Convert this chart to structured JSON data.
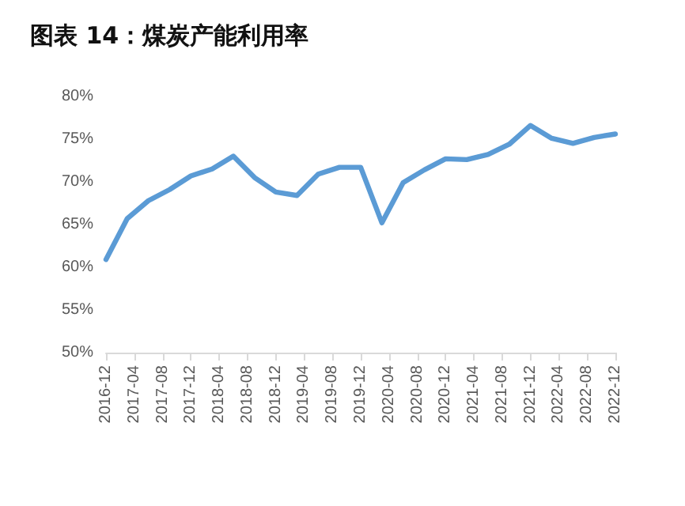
{
  "chart_data": {
    "type": "line",
    "title": "图表 14：煤炭产能利用率",
    "x": [
      "2016-12",
      "2017-03",
      "2017-06",
      "2017-09",
      "2017-12",
      "2018-03",
      "2018-06",
      "2018-09",
      "2018-12",
      "2019-03",
      "2019-06",
      "2019-09",
      "2019-12",
      "2020-03",
      "2020-06",
      "2020-09",
      "2020-12",
      "2021-03",
      "2021-06",
      "2021-09",
      "2021-12",
      "2022-03",
      "2022-06",
      "2022-09",
      "2022-12"
    ],
    "series": [
      {
        "color": "#5b9bd5",
        "values": [
          60.9,
          65.7,
          67.8,
          69.1,
          70.7,
          71.5,
          73.0,
          70.5,
          68.8,
          68.4,
          70.9,
          71.7,
          71.7,
          65.2,
          69.9,
          71.4,
          72.7,
          72.6,
          73.2,
          74.4,
          76.6,
          75.1,
          74.5,
          75.2,
          75.6
        ]
      }
    ],
    "xlim": [
      "2016-12",
      "2022-12"
    ],
    "xticks": [
      "2016-12",
      "2017-04",
      "2017-08",
      "2017-12",
      "2018-04",
      "2018-08",
      "2018-12",
      "2019-04",
      "2019-08",
      "2019-12",
      "2020-04",
      "2020-08",
      "2020-12",
      "2021-04",
      "2021-08",
      "2021-12",
      "2022-04",
      "2022-08",
      "2022-12"
    ],
    "ylim": [
      50,
      80
    ],
    "yticks": [
      {
        "value": 50,
        "label": "50%"
      },
      {
        "value": 55,
        "label": "55%"
      },
      {
        "value": 60,
        "label": "60%"
      },
      {
        "value": 65,
        "label": "65%"
      },
      {
        "value": 70,
        "label": "70%"
      },
      {
        "value": 75,
        "label": "75%"
      },
      {
        "value": 80,
        "label": "80%"
      }
    ],
    "grid": false,
    "marker": "none",
    "line_style": "solid"
  }
}
